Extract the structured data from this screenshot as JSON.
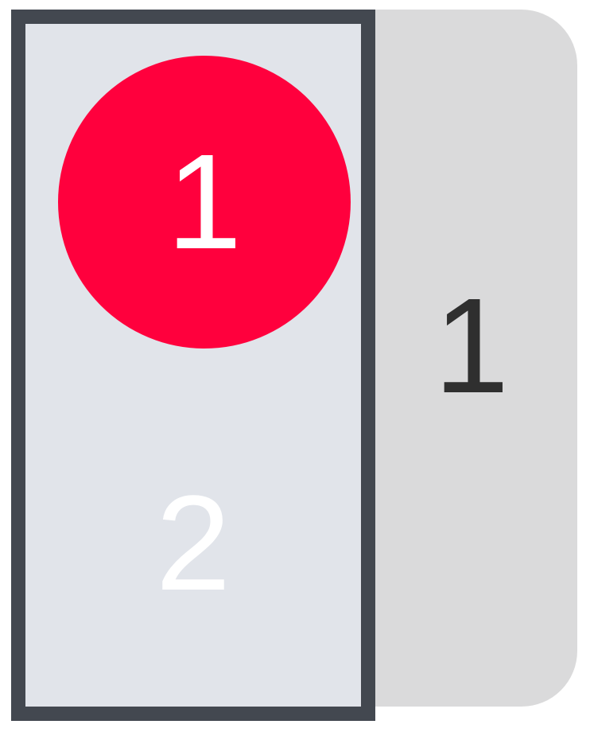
{
  "back_card": {
    "number": "1"
  },
  "front_card": {
    "badge_number": "1",
    "number": "2"
  },
  "colors": {
    "back_card": "#dadadb",
    "front_card": "#e1e4ea",
    "front_border": "#434850",
    "badge": "#ff003d",
    "back_text": "#2f2f2f"
  }
}
